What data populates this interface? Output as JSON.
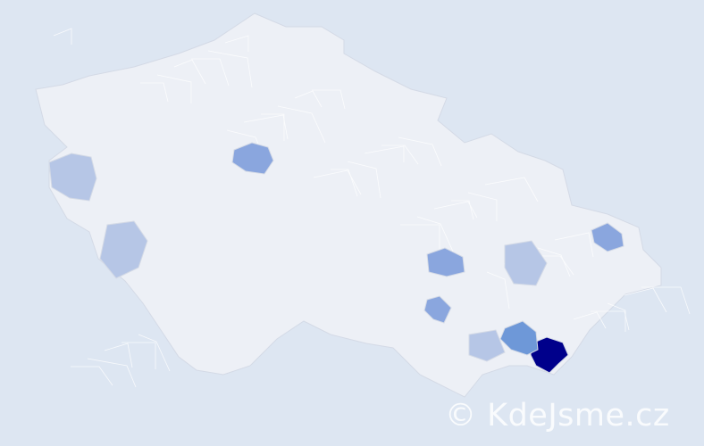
{
  "map": {
    "colors": {
      "background": "#dde6f2",
      "base_region": "#edf0f6",
      "region_border": "#d4dae6",
      "low": "#b6c6e6",
      "medium": "#8aa6de",
      "high": "#6e98d8",
      "max": "#00008b"
    },
    "highlighted_regions": [
      {
        "level": "max"
      },
      {
        "level": "high"
      },
      {
        "level": "medium"
      },
      {
        "level": "medium"
      },
      {
        "level": "medium"
      },
      {
        "level": "medium"
      },
      {
        "level": "low"
      },
      {
        "level": "low"
      },
      {
        "level": "low"
      },
      {
        "level": "low"
      }
    ]
  },
  "watermark": {
    "text": "© KdeJsme.cz"
  }
}
